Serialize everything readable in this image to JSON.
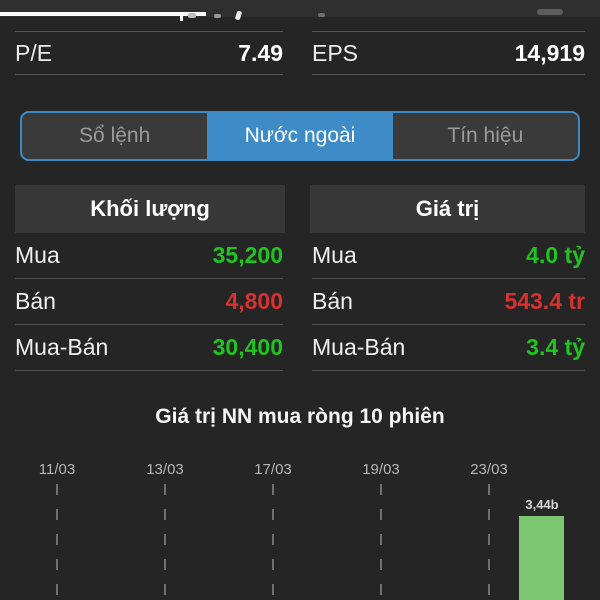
{
  "stats": {
    "left": {
      "label": "P/E",
      "value": "7.49"
    },
    "right": {
      "label": "EPS",
      "value": "14,919"
    }
  },
  "tabs": [
    {
      "label": "Sổ lệnh",
      "active": false
    },
    {
      "label": "Nước ngoài",
      "active": true
    },
    {
      "label": "Tín hiệu",
      "active": false
    }
  ],
  "foreign_table": {
    "headers": {
      "volume": "Khối lượng",
      "value": "Giá trị"
    },
    "volume_rows": [
      {
        "label": "Mua",
        "value": "35,200",
        "color": "green"
      },
      {
        "label": "Bán",
        "value": "4,800",
        "color": "red"
      },
      {
        "label": "Mua-Bán",
        "value": "30,400",
        "color": "green"
      }
    ],
    "value_rows": [
      {
        "label": "Mua",
        "value": "4.0 tỷ",
        "color": "green"
      },
      {
        "label": "Bán",
        "value": "543.4 tr",
        "color": "red"
      },
      {
        "label": "Mua-Bán",
        "value": "3.4 tỷ",
        "color": "green"
      }
    ]
  },
  "chart": {
    "title": "Giá trị NN mua ròng 10 phiên",
    "x_labels": [
      "11/03",
      "13/03",
      "17/03",
      "19/03",
      "23/03"
    ],
    "bar_label": "3,44b"
  },
  "chart_data": {
    "type": "bar",
    "title": "Giá trị NN mua ròng 10 phiên",
    "x_tick_labels": [
      "11/03",
      "13/03",
      "17/03",
      "19/03",
      "23/03"
    ],
    "grid": "dashed-vertical",
    "bars_visible": [
      {
        "position": "right of 23/03 (latest session)",
        "label": "3,44b",
        "value_billions": 3.44,
        "color": "#7cc672"
      }
    ],
    "note_layout": "baseline cut off at bottom edge; only the latest session bar is visible"
  },
  "colors": {
    "background": "#252525",
    "panel": "#373737",
    "accent_blue": "#3e8cc7",
    "positive_green": "#1fc41f",
    "negative_red": "#d93030",
    "bar_green": "#7cc672",
    "divider": "#555555"
  }
}
